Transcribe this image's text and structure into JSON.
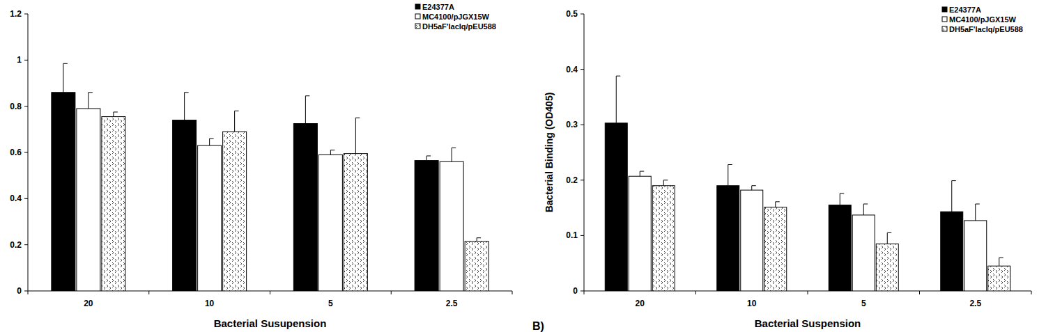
{
  "chart_data": [
    {
      "type": "bar",
      "x_label": "Bacterial Susupension",
      "categories": [
        "20",
        "10",
        "5",
        "2.5"
      ],
      "series": [
        {
          "name": "E24377A",
          "color": "#000000",
          "values": [
            0.86,
            0.74,
            0.725,
            0.565
          ],
          "errors": [
            0.125,
            0.12,
            0.12,
            0.02
          ]
        },
        {
          "name": "MC4100/pJGX15W",
          "color": "#ffffff",
          "values": [
            0.79,
            0.63,
            0.59,
            0.56
          ],
          "errors": [
            0.07,
            0.03,
            0.02,
            0.06
          ]
        },
        {
          "name": "DH5aF'lacIq/pEU588",
          "color": "#ffffff",
          "values": [
            0.755,
            0.69,
            0.595,
            0.215
          ],
          "errors": [
            0.02,
            0.09,
            0.155,
            0.015
          ]
        }
      ],
      "ylim": [
        0,
        1.2
      ],
      "yticks": [
        0,
        0.2,
        0.4,
        0.6,
        0.8,
        1,
        1.2
      ],
      "grid": false,
      "legend": "top-right"
    },
    {
      "type": "bar",
      "annotation": "B)",
      "x_label": "Bacterial Suspension",
      "y_label": "Bacterial Binding (OD405)",
      "categories": [
        "20",
        "10",
        "5",
        "2.5"
      ],
      "series": [
        {
          "name": "E24377A",
          "color": "#000000",
          "values": [
            0.303,
            0.19,
            0.155,
            0.143
          ],
          "errors": [
            0.085,
            0.038,
            0.021,
            0.056
          ]
        },
        {
          "name": "MC4100/pJGX15W",
          "color": "#ffffff",
          "values": [
            0.207,
            0.182,
            0.137,
            0.127
          ],
          "errors": [
            0.009,
            0.008,
            0.02,
            0.03
          ]
        },
        {
          "name": "DH5aF'lacIq/pEU588",
          "color": "#ffffff",
          "values": [
            0.19,
            0.151,
            0.085,
            0.045
          ],
          "errors": [
            0.01,
            0.01,
            0.02,
            0.015
          ]
        }
      ],
      "ylim": [
        0,
        0.5
      ],
      "yticks": [
        0,
        0.1,
        0.2,
        0.3,
        0.4,
        0.5
      ],
      "grid": false,
      "legend": "top-right"
    }
  ]
}
